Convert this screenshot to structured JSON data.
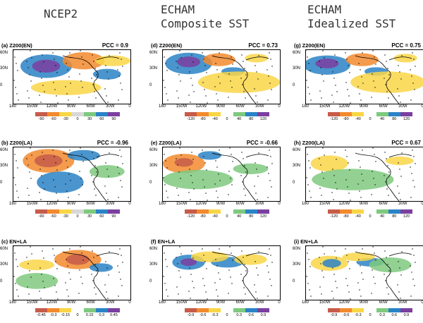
{
  "columns": [
    {
      "title": "NCEP2"
    },
    {
      "title": "ECHAM\nComposite SST"
    },
    {
      "title": "ECHAM\nIdealized SST"
    }
  ],
  "lat_labels": [
    "60N",
    "30N",
    "0"
  ],
  "lon_labels": [
    "180",
    "150W",
    "120W",
    "90W",
    "60W",
    "30W",
    "0"
  ],
  "panels": [
    {
      "label": "(a) Z200(EN)",
      "pcc": "PCC = 0.9",
      "scale": [
        "-90",
        "-60",
        "-30",
        "0",
        "30",
        "60",
        "90"
      ],
      "colors": [
        "#c65c4a",
        "#f28a2e",
        "#f9d648",
        "#d8d8d8",
        "#7fc97f",
        "#2a83c6",
        "#7b3fa0"
      ]
    },
    {
      "label": "(d) Z200(EN)",
      "pcc": "PCC = 0.73",
      "scale": [
        "-120",
        "-80",
        "-40",
        "0",
        "40",
        "80",
        "120"
      ],
      "colors": [
        "#c65c4a",
        "#f28a2e",
        "#f9d648",
        "#ffffff",
        "#7fc97f",
        "#2a83c6",
        "#7b3fa0"
      ]
    },
    {
      "label": "(g) Z200(EN)",
      "pcc": "PCC = 0.75",
      "scale": [
        "-120",
        "-80",
        "-40",
        "0",
        "40",
        "80",
        "120"
      ],
      "colors": [
        "#c65c4a",
        "#f28a2e",
        "#f9d648",
        "#ffffff",
        "#7fc97f",
        "#2a83c6",
        "#7b3fa0"
      ]
    },
    {
      "label": "(b) Z200(LA)",
      "pcc": "PCC = -0.96",
      "scale": [
        "-90",
        "-60",
        "-30",
        "0",
        "30",
        "60",
        "90"
      ],
      "colors": [
        "#c65c4a",
        "#f28a2e",
        "#f9d648",
        "#d8d8d8",
        "#7fc97f",
        "#2a83c6",
        "#7b3fa0"
      ]
    },
    {
      "label": "(e) Z200(LA)",
      "pcc": "PCC = -0.66",
      "scale": [
        "-120",
        "-80",
        "-40",
        "0",
        "40",
        "80",
        "120"
      ],
      "colors": [
        "#c65c4a",
        "#f28a2e",
        "#f9d648",
        "#ffffff",
        "#7fc97f",
        "#2a83c6",
        "#7b3fa0"
      ]
    },
    {
      "label": "(h) Z200(LA)",
      "pcc": "PCC = 0.67",
      "scale": [
        "-120",
        "-80",
        "-40",
        "0",
        "40",
        "80",
        "120"
      ],
      "colors": [
        "#c65c4a",
        "#f28a2e",
        "#f9d648",
        "#ffffff",
        "#7fc97f",
        "#2a83c6",
        "#7b3fa0"
      ]
    },
    {
      "label": "(c) EN+LA",
      "pcc": "",
      "scale": [
        "-0.45",
        "-0.3",
        "-0.15",
        "0",
        "0.15",
        "0.3",
        "0.45"
      ],
      "colors": [
        "#c65c4a",
        "#f28a2e",
        "#f9d648",
        "#ffffff",
        "#7fc97f",
        "#2a83c6",
        "#7b3fa0"
      ]
    },
    {
      "label": "(f) EN+LA",
      "pcc": "",
      "scale": [
        "-0.9",
        "-0.6",
        "-0.3",
        "0",
        "0.3",
        "0.6",
        "0.9"
      ],
      "colors": [
        "#c65c4a",
        "#f28a2e",
        "#f9d648",
        "#ffffff",
        "#7fc97f",
        "#2a83c6",
        "#7b3fa0"
      ]
    },
    {
      "label": "(i) EN+LA",
      "pcc": "",
      "scale": [
        "-0.9",
        "-0.6",
        "-0.3",
        "0",
        "0.3",
        "0.6",
        "0.9"
      ],
      "colors": [
        "#c65c4a",
        "#f28a2e",
        "#f9d648",
        "#ffffff",
        "#7fc97f",
        "#2a83c6",
        "#7b3fa0"
      ]
    }
  ]
}
